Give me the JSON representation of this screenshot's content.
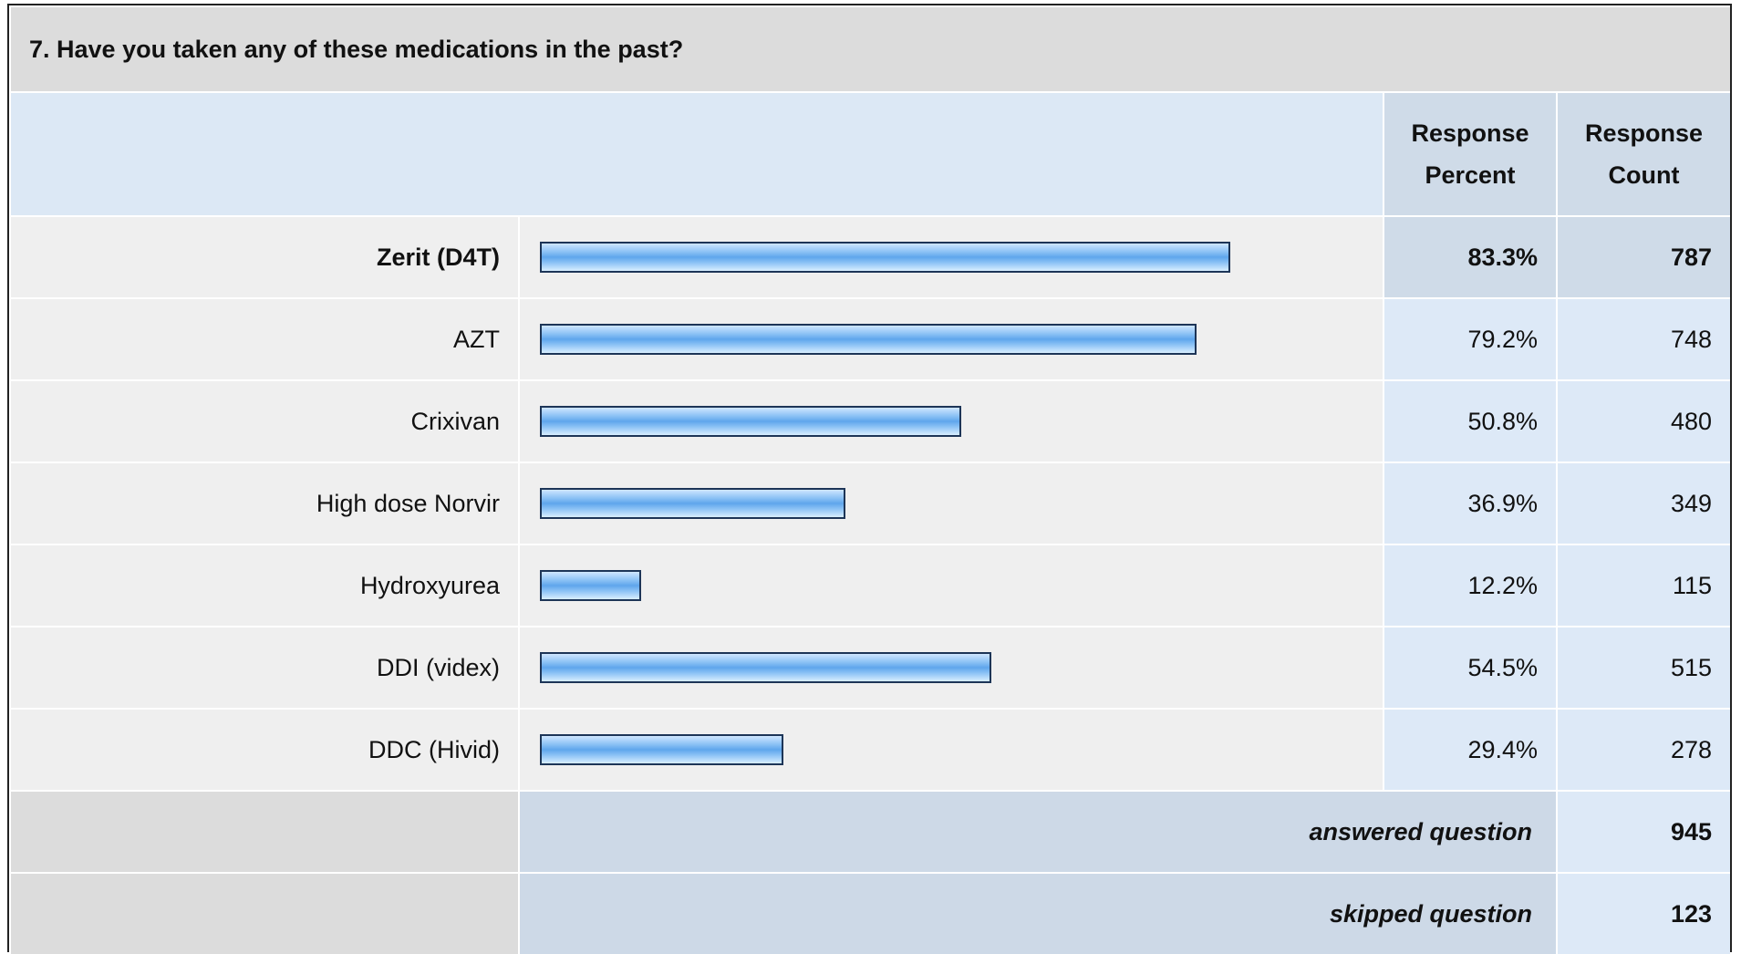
{
  "title": "7. Have you taken any of these medications in the past?",
  "header": {
    "percent": "Response Percent",
    "count": "Response Count"
  },
  "rows": [
    {
      "label": "Zerit (D4T)",
      "percent": 83.3,
      "percent_label": "83.3%",
      "count": 787
    },
    {
      "label": "AZT",
      "percent": 79.2,
      "percent_label": "79.2%",
      "count": 748
    },
    {
      "label": "Crixivan",
      "percent": 50.8,
      "percent_label": "50.8%",
      "count": 480
    },
    {
      "label": "High dose Norvir",
      "percent": 36.9,
      "percent_label": "36.9%",
      "count": 349
    },
    {
      "label": "Hydroxyurea",
      "percent": 12.2,
      "percent_label": "12.2%",
      "count": 115
    },
    {
      "label": "DDI (videx)",
      "percent": 54.5,
      "percent_label": "54.5%",
      "count": 515
    },
    {
      "label": "DDC (Hivid)",
      "percent": 29.4,
      "percent_label": "29.4%",
      "count": 278
    }
  ],
  "answered": {
    "label": "answered question",
    "count": 945
  },
  "skipped": {
    "label": "skipped question",
    "count": 123
  }
}
